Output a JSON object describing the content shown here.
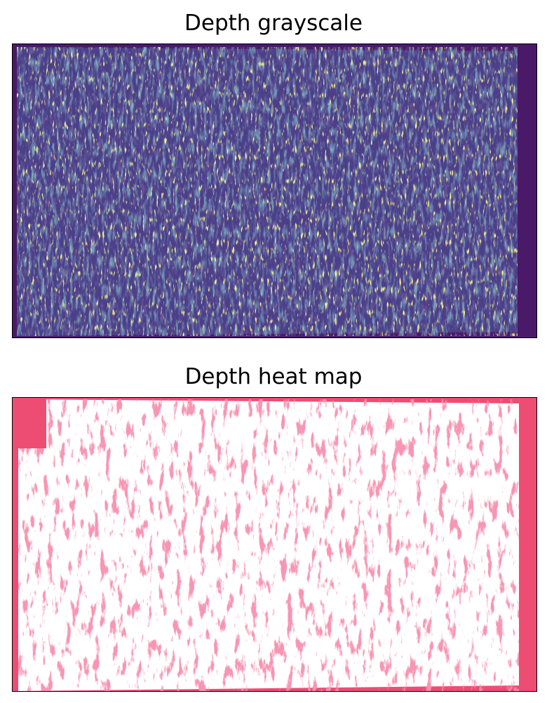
{
  "figure": {
    "panels": [
      {
        "title": "Depth grayscale",
        "image": "depth-map-viridis",
        "colors": {
          "background": "#4a1a68",
          "base": "#4b3f8a",
          "mid": "#3f7a9a",
          "teal": "#2fb08a",
          "highlight": "#f0e040"
        }
      },
      {
        "title": "Depth heat map",
        "image": "depth-map-binary",
        "colors": {
          "background": "#ffffff",
          "foreground": "#ee4d73"
        }
      }
    ]
  }
}
